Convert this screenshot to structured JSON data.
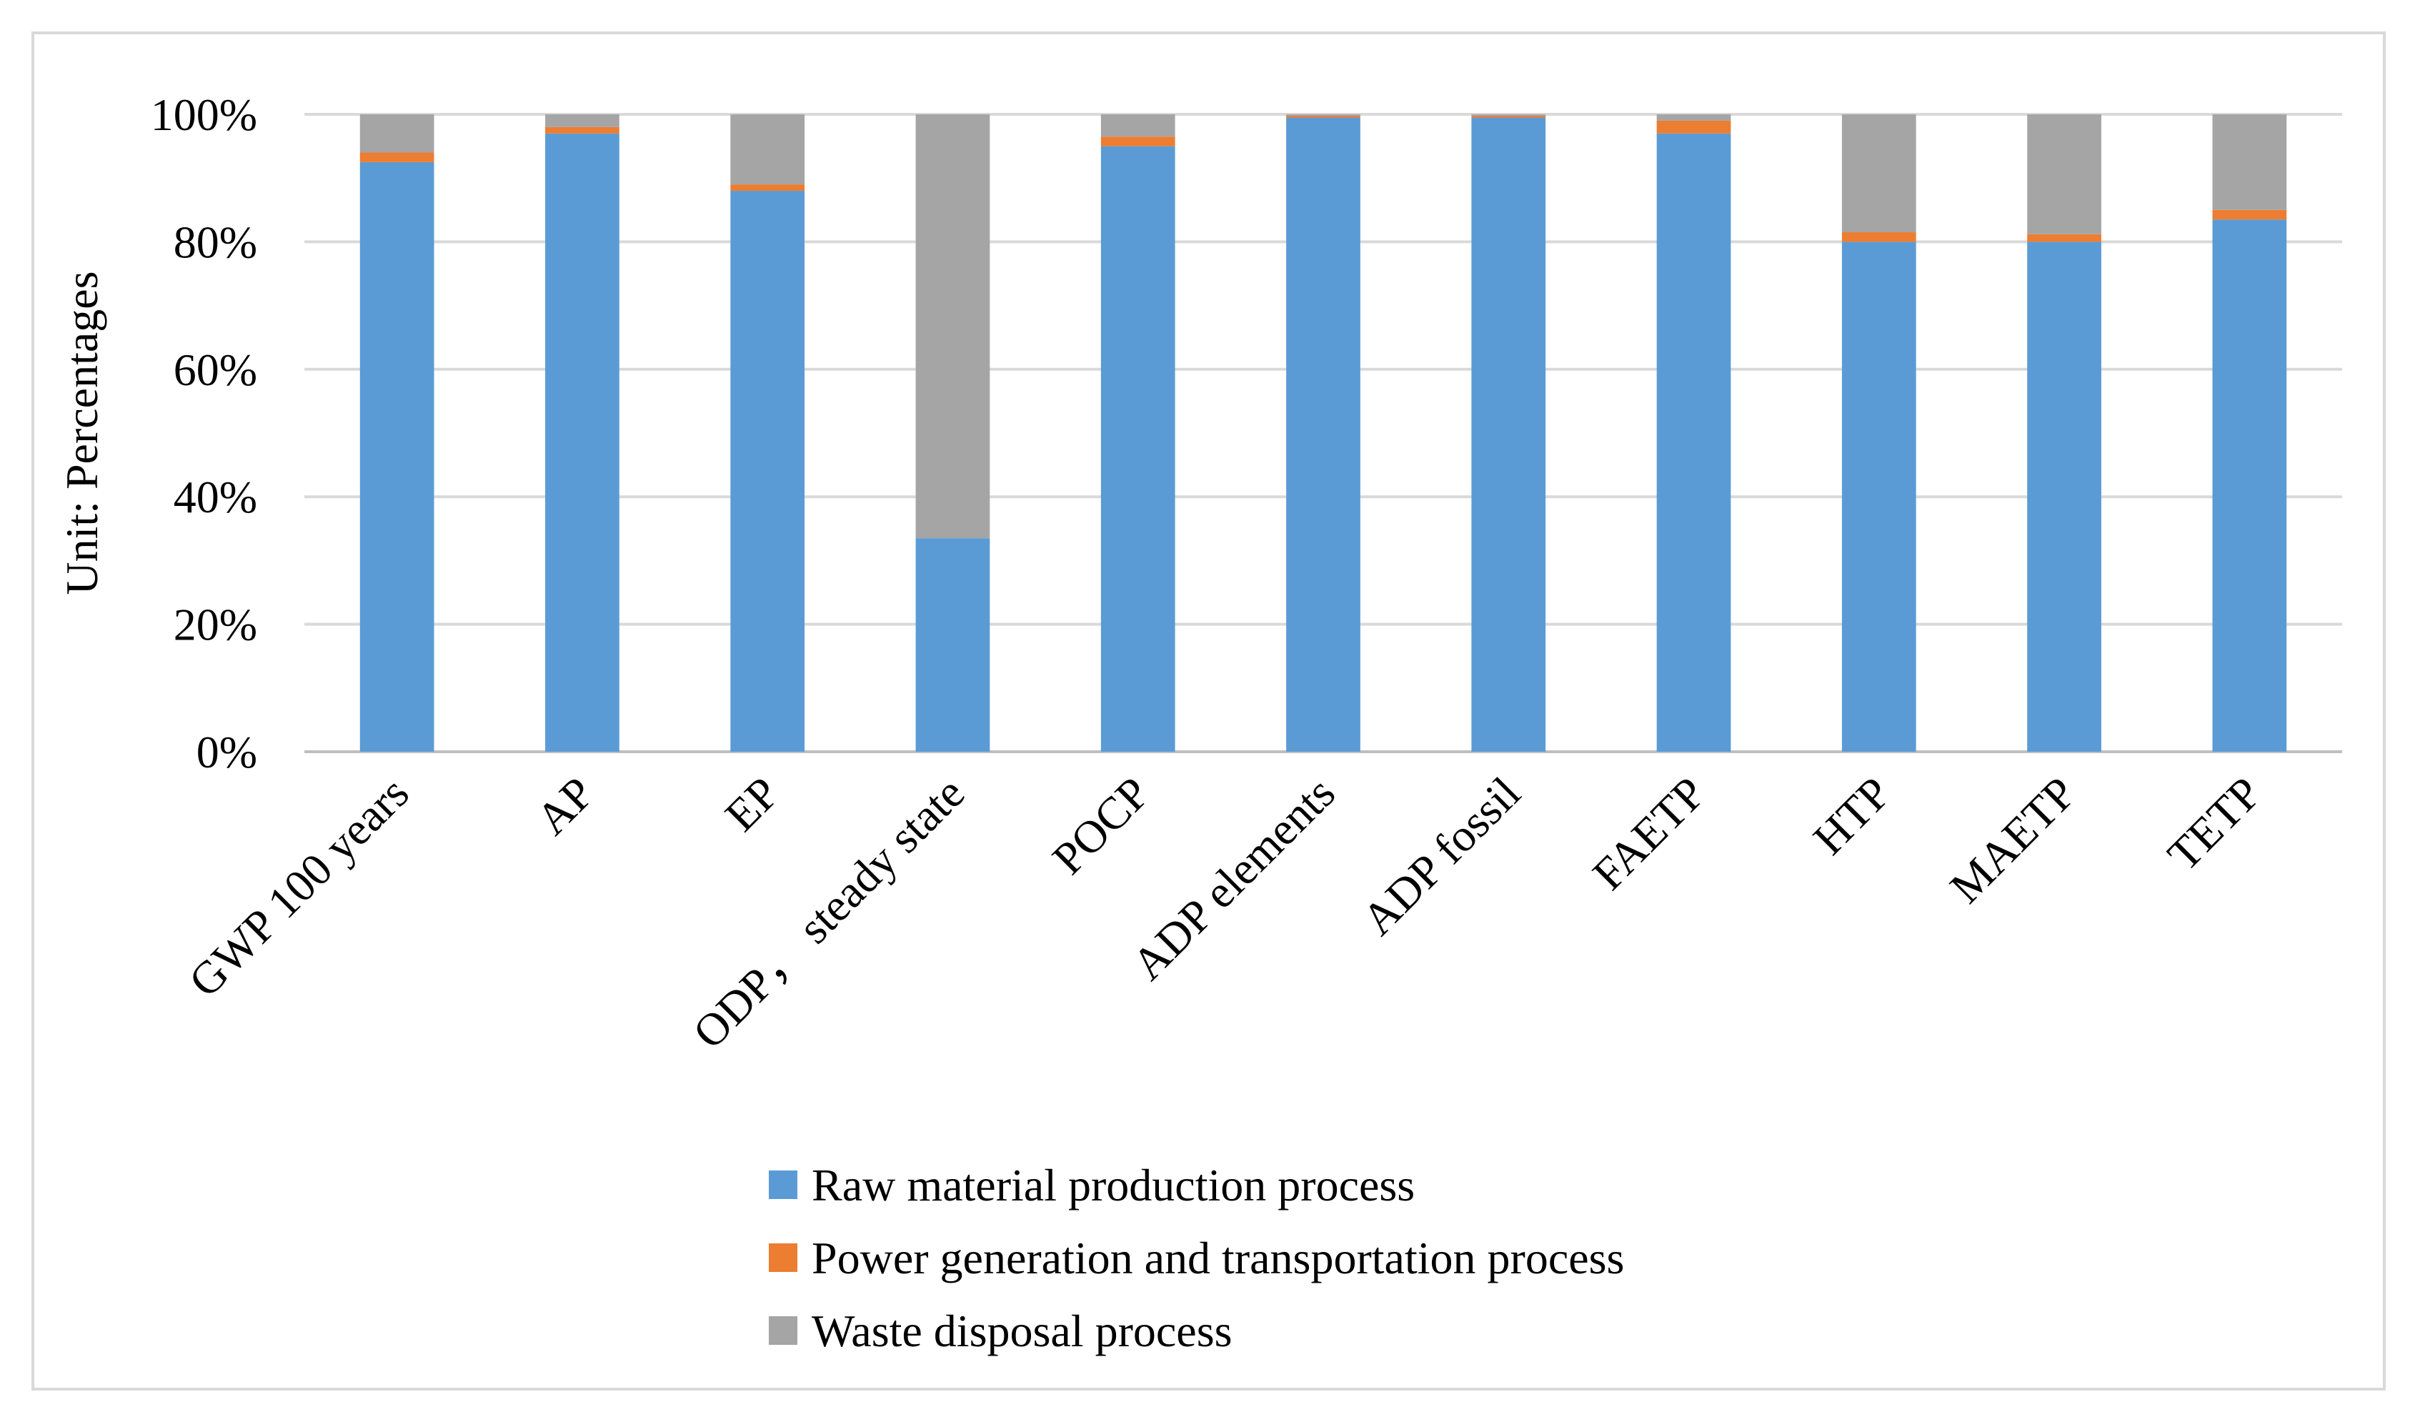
{
  "chart_data": {
    "type": "bar",
    "stacked": true,
    "normalized": true,
    "title": "",
    "xlabel": "",
    "ylabel": "Unit: Percentages",
    "ylim": [
      0,
      100
    ],
    "y_ticks": [
      "0%",
      "20%",
      "40%",
      "60%",
      "80%",
      "100%"
    ],
    "grid": true,
    "legend_position": "bottom",
    "categories": [
      "GWP 100 years",
      "AP",
      "EP",
      "ODP， steady state",
      "POCP",
      "ADP elements",
      "ADP fossil",
      "FAETP",
      "HTP",
      "MAETP",
      "TETP"
    ],
    "series": [
      {
        "name": "Raw material production process",
        "color": "#5b9bd5",
        "values": [
          92.5,
          97,
          88,
          33.5,
          95,
          99.5,
          99.5,
          97,
          80,
          80,
          83.5
        ]
      },
      {
        "name": "Power generation and transportation process",
        "color": "#ed7d31",
        "values": [
          1.5,
          1,
          1,
          0,
          1.5,
          0.3,
          0.3,
          2,
          1.5,
          1.2,
          1.5
        ]
      },
      {
        "name": "Waste disposal process",
        "color": "#a5a5a5",
        "values": [
          6,
          2,
          11,
          66.5,
          3.5,
          0.2,
          0.2,
          1,
          18.5,
          18.8,
          15
        ]
      }
    ]
  }
}
